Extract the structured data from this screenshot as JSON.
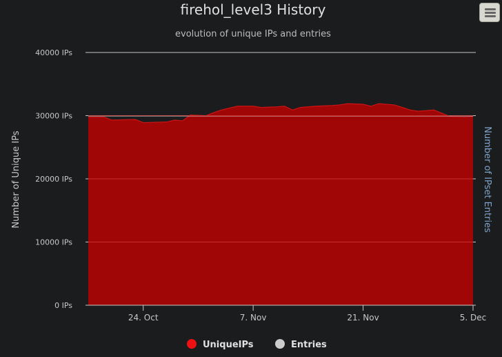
{
  "chart_data": {
    "type": "area",
    "title": "firehol_level3 History",
    "subtitle": "evolution of unique IPs and entries",
    "ylabel_left": "Number of Unique IPs",
    "ylabel_right": "Number of IPset Entries",
    "ylim": [
      0,
      40000
    ],
    "y_ticks": [
      {
        "value": 0,
        "label": "0 IPs"
      },
      {
        "value": 10000,
        "label": "10000 IPs"
      },
      {
        "value": 20000,
        "label": "20000 IPs"
      },
      {
        "value": 30000,
        "label": "30000 IPs"
      },
      {
        "value": 40000,
        "label": "40000 IPs"
      }
    ],
    "xlim": [
      "2023-10-17",
      "2023-12-05"
    ],
    "x_ticks": [
      {
        "value": "2023-10-24",
        "label": "24. Oct"
      },
      {
        "value": "2023-11-07",
        "label": "7. Nov"
      },
      {
        "value": "2023-11-21",
        "label": "21. Nov"
      },
      {
        "value": "2023-12-05",
        "label": "5. Dec"
      }
    ],
    "legend": [
      {
        "name": "UniqueIPs",
        "color": "#ee1111"
      },
      {
        "name": "Entries",
        "color": "#cccccc"
      }
    ],
    "legend_position": "bottom-center",
    "series": [
      {
        "name": "UniqueIPs",
        "color": "#a00606",
        "line_color": "#cc1414",
        "points": [
          [
            "2023-10-17",
            29800
          ],
          [
            "2023-10-19",
            29800
          ],
          [
            "2023-10-20",
            29300
          ],
          [
            "2023-10-23",
            29400
          ],
          [
            "2023-10-24",
            28900
          ],
          [
            "2023-10-27",
            29000
          ],
          [
            "2023-10-28",
            29300
          ],
          [
            "2023-10-29",
            29200
          ],
          [
            "2023-10-30",
            30100
          ],
          [
            "2023-11-01",
            30000
          ],
          [
            "2023-11-02",
            30500
          ],
          [
            "2023-11-03",
            30900
          ],
          [
            "2023-11-04",
            31200
          ],
          [
            "2023-11-05",
            31500
          ],
          [
            "2023-11-07",
            31500
          ],
          [
            "2023-11-08",
            31300
          ],
          [
            "2023-11-10",
            31400
          ],
          [
            "2023-11-11",
            31500
          ],
          [
            "2023-11-12",
            30900
          ],
          [
            "2023-11-13",
            31300
          ],
          [
            "2023-11-15",
            31500
          ],
          [
            "2023-11-17",
            31600
          ],
          [
            "2023-11-18",
            31700
          ],
          [
            "2023-11-19",
            31900
          ],
          [
            "2023-11-21",
            31800
          ],
          [
            "2023-11-22",
            31500
          ],
          [
            "2023-11-23",
            31900
          ],
          [
            "2023-11-25",
            31700
          ],
          [
            "2023-11-26",
            31300
          ],
          [
            "2023-11-27",
            30900
          ],
          [
            "2023-11-28",
            30700
          ],
          [
            "2023-11-29",
            30800
          ],
          [
            "2023-11-30",
            30900
          ],
          [
            "2023-12-01",
            30400
          ],
          [
            "2023-12-02",
            29900
          ],
          [
            "2023-12-04",
            29800
          ],
          [
            "2023-12-05",
            29900
          ]
        ]
      },
      {
        "name": "Entries",
        "color": "#cccccc",
        "points": [
          [
            "2023-10-17",
            29900
          ],
          [
            "2023-12-05",
            29900
          ]
        ]
      }
    ]
  }
}
